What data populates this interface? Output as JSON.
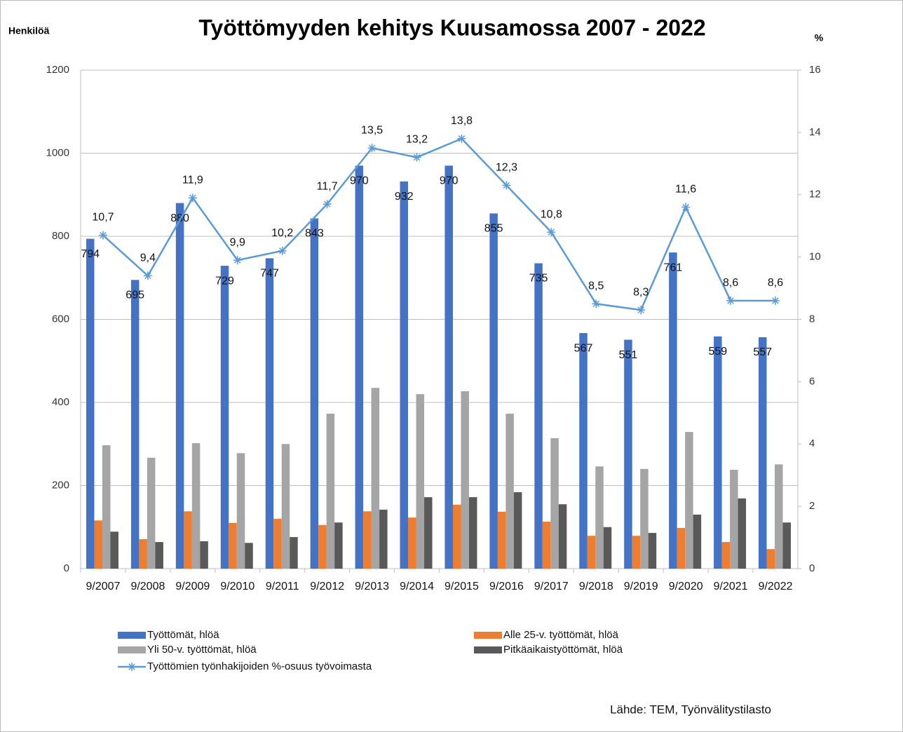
{
  "chart_data": {
    "type": "bar",
    "title": "Työttömyyden kehitys Kuusamossa 2007 - 2022",
    "y_label": "Henkilöä",
    "y2_label": "%",
    "source": "Lähde: TEM, Työnvälitystilasto",
    "categories": [
      "9/2007",
      "9/2008",
      "9/2009",
      "9/2010",
      "9/2011",
      "9/2012",
      "9/2013",
      "9/2014",
      "9/2015",
      "9/2016",
      "9/2017",
      "9/2018",
      "9/2019",
      "9/2020",
      "9/2021",
      "9/2022"
    ],
    "ylim": [
      0,
      1200
    ],
    "yticks": [
      0,
      200,
      400,
      600,
      800,
      1000,
      1200
    ],
    "y2lim": [
      0,
      16
    ],
    "y2ticks": [
      0,
      2,
      4,
      6,
      8,
      10,
      12,
      14,
      16
    ],
    "grid": true,
    "legend": "bottom",
    "series": [
      {
        "name": "Työttömät, hlöä",
        "type": "bar",
        "color": "#4472c4",
        "show_labels": true,
        "values": [
          794,
          695,
          880,
          729,
          747,
          843,
          970,
          932,
          970,
          855,
          735,
          567,
          551,
          761,
          559,
          557
        ]
      },
      {
        "name": "Alle 25-v. työttömät, hlöä",
        "type": "bar",
        "color": "#ed7d31",
        "values": [
          116,
          71,
          138,
          110,
          120,
          105,
          138,
          123,
          154,
          137,
          113,
          79,
          79,
          98,
          64,
          47
        ]
      },
      {
        "name": "Yli 50-v. työttömät, hlöä",
        "type": "bar",
        "color": "#a5a5a5",
        "values": [
          297,
          267,
          302,
          278,
          300,
          373,
          435,
          420,
          427,
          373,
          314,
          246,
          240,
          329,
          238,
          251
        ]
      },
      {
        "name": "Pitkäaikaistyöttömät, hlöä",
        "type": "bar",
        "color": "#595959",
        "values": [
          89,
          64,
          66,
          62,
          76,
          111,
          142,
          172,
          172,
          184,
          155,
          100,
          86,
          130,
          169,
          111
        ]
      },
      {
        "name": "Työttömien työnhakijoiden %-osuus työvoimasta",
        "type": "line",
        "axis": "y2",
        "color": "#5b9bd5",
        "show_labels": true,
        "values": [
          10.7,
          9.4,
          11.9,
          9.9,
          10.2,
          11.7,
          13.5,
          13.2,
          13.8,
          12.3,
          10.8,
          8.5,
          8.3,
          11.6,
          8.6,
          8.6
        ],
        "value_labels": [
          "10,7",
          "9,4",
          "11,9",
          "9,9",
          "10,2",
          "11,7",
          "13,5",
          "13,2",
          "13,8",
          "12,3",
          "10,8",
          "8,5",
          "8,3",
          "11,6",
          "8,6",
          "8,6"
        ]
      }
    ]
  }
}
